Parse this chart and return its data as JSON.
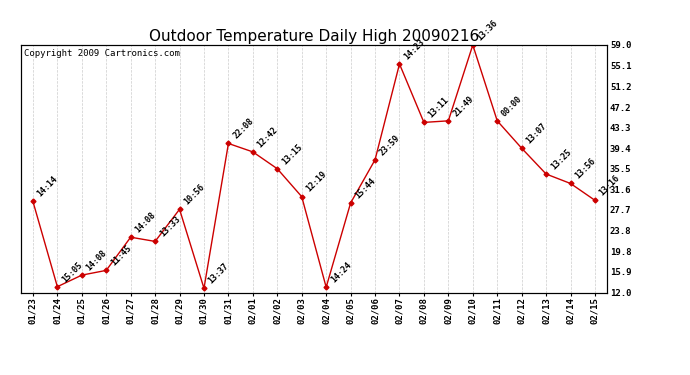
{
  "title": "Outdoor Temperature Daily High 20090216",
  "copyright": "Copyright 2009 Cartronics.com",
  "line_color": "#cc0000",
  "marker_color": "#cc0000",
  "background_color": "#ffffff",
  "grid_color": "#cccccc",
  "text_color": "#000000",
  "dates": [
    "01/23",
    "01/24",
    "01/25",
    "01/26",
    "01/27",
    "01/28",
    "01/29",
    "01/30",
    "01/31",
    "02/01",
    "02/02",
    "02/03",
    "02/04",
    "02/05",
    "02/06",
    "02/07",
    "02/08",
    "02/09",
    "02/10",
    "02/11",
    "02/12",
    "02/13",
    "02/14",
    "02/15"
  ],
  "values": [
    29.3,
    13.1,
    15.3,
    16.2,
    22.5,
    21.7,
    27.8,
    12.8,
    40.3,
    38.7,
    35.5,
    30.2,
    13.0,
    29.0,
    37.2,
    55.4,
    44.3,
    44.6,
    59.0,
    44.6,
    39.4,
    34.5,
    32.7,
    29.5
  ],
  "times": [
    "14:14",
    "15:05",
    "14:08",
    "11:45",
    "14:08",
    "13:33",
    "10:56",
    "13:37",
    "22:08",
    "12:42",
    "13:15",
    "12:19",
    "14:24",
    "15:44",
    "23:59",
    "14:23",
    "13:11",
    "21:49",
    "13:36",
    "00:00",
    "13:07",
    "13:25",
    "13:56",
    "13:16"
  ],
  "ylim": [
    12.0,
    59.0
  ],
  "yticks_right": [
    59.0,
    55.1,
    51.2,
    47.2,
    43.3,
    39.4,
    35.5,
    31.6,
    27.7,
    23.8,
    19.8,
    15.9,
    12.0
  ],
  "title_fontsize": 11,
  "tick_fontsize": 6.5,
  "annotation_fontsize": 6.0,
  "copyright_fontsize": 6.5
}
